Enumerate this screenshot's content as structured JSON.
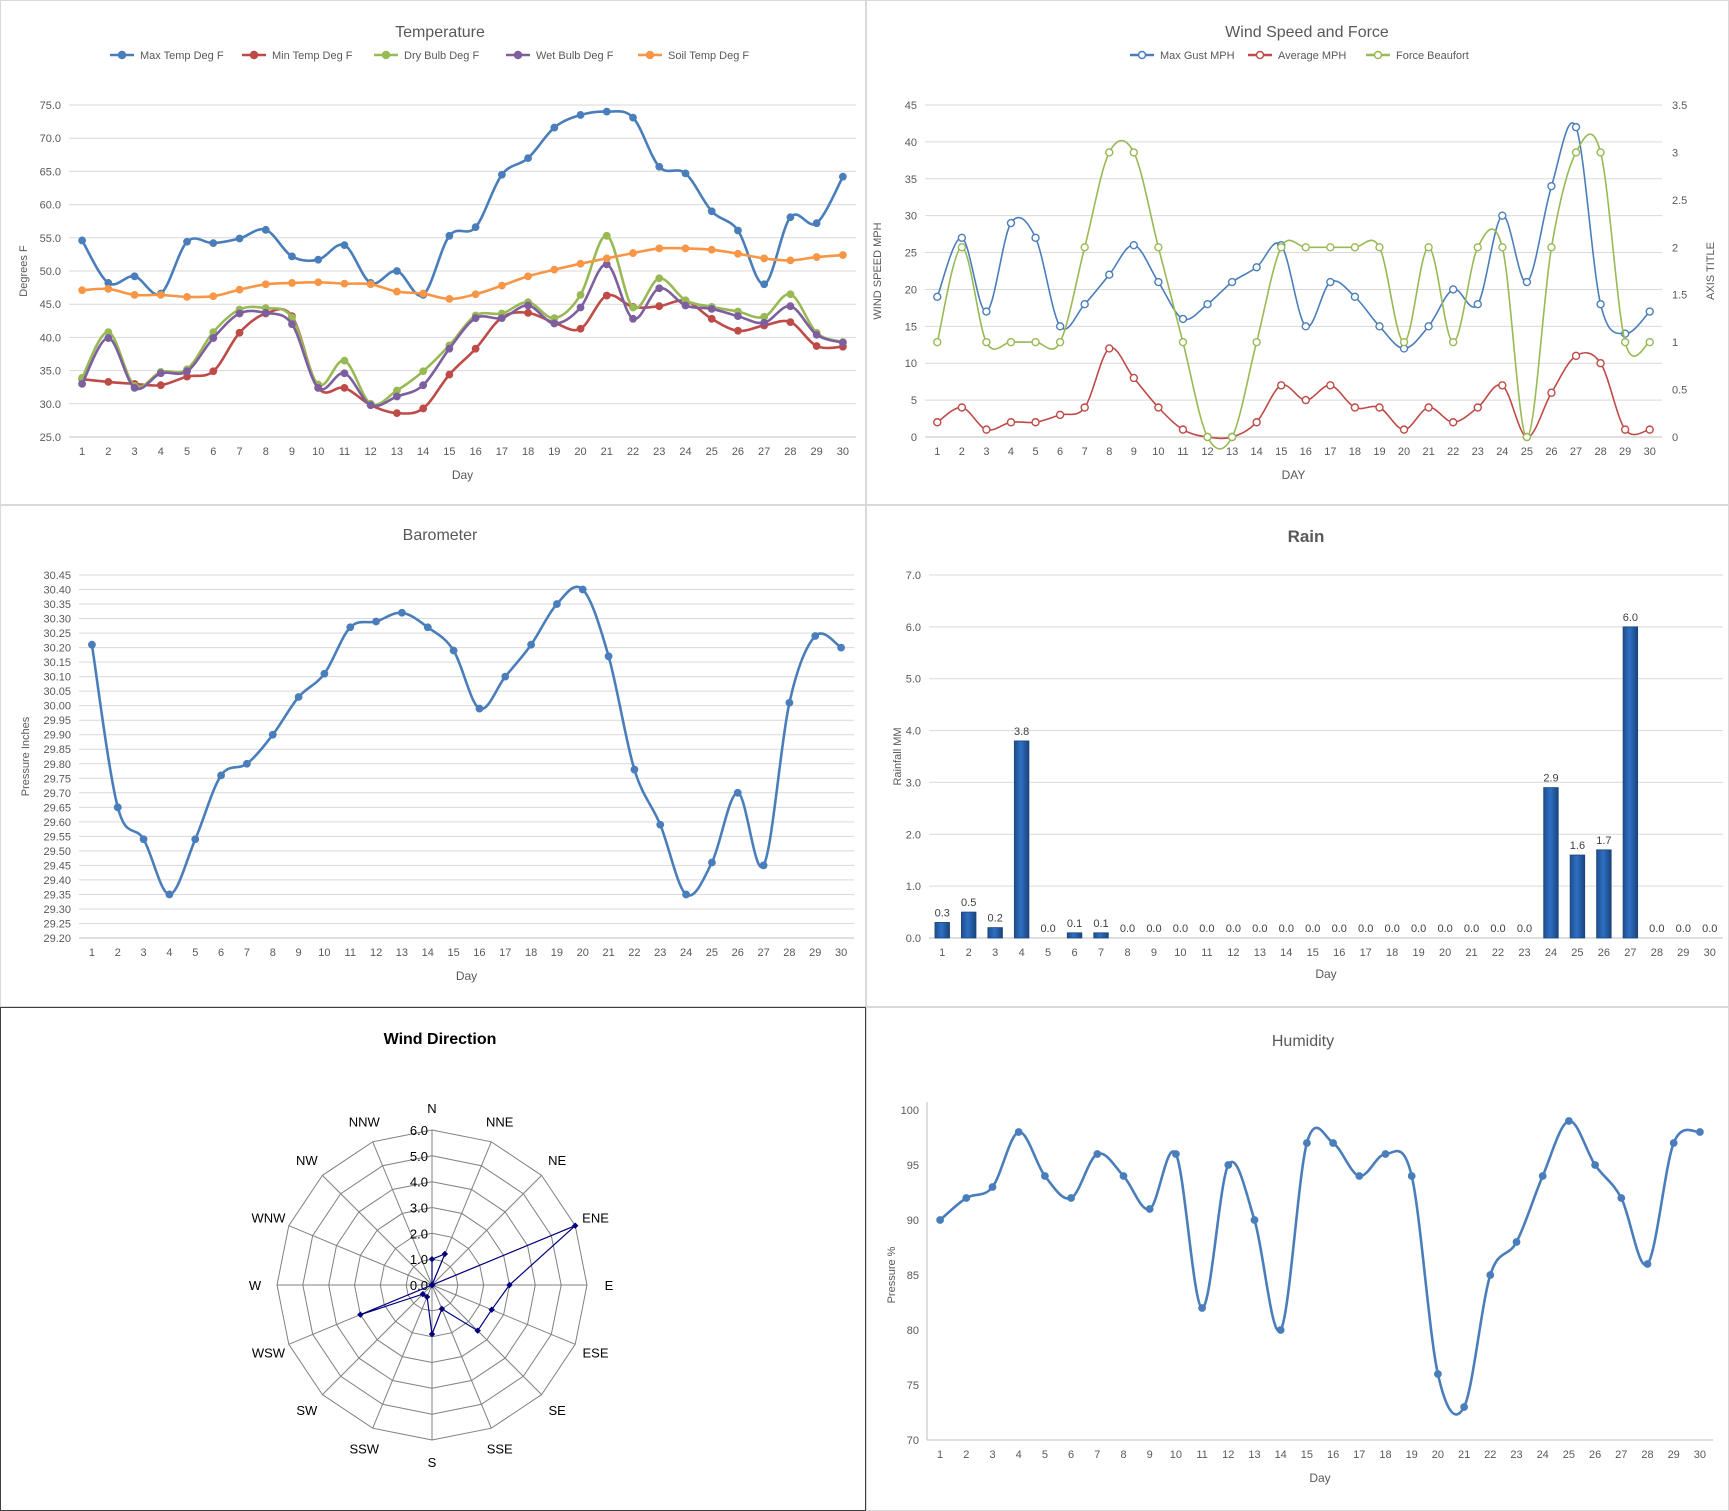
{
  "chart_data": [
    {
      "id": "temperature",
      "type": "line",
      "title": "Temperature",
      "xlabel": "Day",
      "ylabel": "Degrees F",
      "ylim": [
        25,
        75
      ],
      "ystep": 5,
      "ydecimals": 1,
      "legend": "top",
      "grid": true,
      "x": [
        1,
        2,
        3,
        4,
        5,
        6,
        7,
        8,
        9,
        10,
        11,
        12,
        13,
        14,
        15,
        16,
        17,
        18,
        19,
        20,
        21,
        22,
        23,
        24,
        25,
        26,
        27,
        28,
        29,
        30
      ],
      "series": [
        {
          "name": "Max Temp Deg F",
          "color": "#4a7ebb",
          "values": [
            54.6,
            48.2,
            49.2,
            46.6,
            54.4,
            54.2,
            54.9,
            56.2,
            52.2,
            51.7,
            53.9,
            48.2,
            50.0,
            46.4,
            55.3,
            56.6,
            64.5,
            67.0,
            71.6,
            73.5,
            74.0,
            73.1,
            65.7,
            64.7,
            59.0,
            56.1,
            48.0,
            58.1,
            57.2,
            64.2
          ]
        },
        {
          "name": "Min Temp Deg F",
          "color": "#be4b48",
          "values": [
            33.7,
            33.3,
            33.0,
            32.8,
            34.1,
            34.9,
            40.7,
            43.6,
            43.2,
            32.4,
            32.4,
            29.8,
            28.6,
            29.3,
            34.4,
            38.3,
            43.0,
            43.7,
            42.2,
            41.3,
            46.3,
            44.6,
            44.7,
            45.5,
            42.8,
            41.0,
            41.8,
            42.3,
            38.7,
            38.6
          ]
        },
        {
          "name": "Dry Bulb Deg F",
          "color": "#98b954",
          "values": [
            33.9,
            40.8,
            32.7,
            34.8,
            35.2,
            40.8,
            44.2,
            44.4,
            43.0,
            32.9,
            36.5,
            30.0,
            32.0,
            34.9,
            38.8,
            43.3,
            43.6,
            45.3,
            42.9,
            46.4,
            55.3,
            44.5,
            48.9,
            45.6,
            44.6,
            43.9,
            43.1,
            46.5,
            40.7,
            39.3
          ]
        },
        {
          "name": "Wet Bulb Deg F",
          "color": "#7d5fa0",
          "values": [
            33.0,
            39.9,
            32.4,
            34.6,
            34.9,
            39.9,
            43.6,
            43.7,
            42.0,
            32.4,
            34.6,
            29.8,
            31.1,
            32.8,
            38.3,
            42.9,
            42.9,
            44.8,
            42.1,
            44.5,
            51.0,
            42.8,
            47.4,
            44.8,
            44.3,
            43.2,
            42.2,
            44.7,
            40.4,
            39.2
          ]
        },
        {
          "name": "Soil Temp Deg F",
          "color": "#f79646",
          "values": [
            47.1,
            47.3,
            46.4,
            46.4,
            46.1,
            46.2,
            47.2,
            48.0,
            48.2,
            48.3,
            48.1,
            48.0,
            46.9,
            46.6,
            45.8,
            46.5,
            47.8,
            49.2,
            50.2,
            51.1,
            51.9,
            52.7,
            53.4,
            53.4,
            53.2,
            52.6,
            51.9,
            51.6,
            52.1,
            52.4
          ]
        }
      ]
    },
    {
      "id": "wind",
      "type": "line",
      "title": "Wind Speed and Force",
      "xlabel": "DAY",
      "ylabel": "WIND SPEED MPH",
      "y2label": "AXIS TITLE",
      "ylim": [
        0,
        45
      ],
      "ystep": 5,
      "y2lim": [
        0,
        3.5
      ],
      "y2step": 0.5,
      "legend": "top",
      "grid": true,
      "x": [
        1,
        2,
        3,
        4,
        5,
        6,
        7,
        8,
        9,
        10,
        11,
        12,
        13,
        14,
        15,
        16,
        17,
        18,
        19,
        20,
        21,
        22,
        23,
        24,
        25,
        26,
        27,
        28,
        29,
        30
      ],
      "series": [
        {
          "name": "Max Gust MPH",
          "color": "#4a7ebb",
          "axis": "left",
          "values": [
            19,
            27,
            17,
            29,
            27,
            15,
            18,
            22,
            26,
            21,
            16,
            18,
            21,
            23,
            26,
            15,
            21,
            19,
            15,
            12,
            15,
            20,
            18,
            30,
            21,
            34,
            42,
            18,
            14,
            17
          ]
        },
        {
          "name": "Average MPH",
          "color": "#be4b48",
          "axis": "left",
          "values": [
            2,
            4,
            1,
            2,
            2,
            3,
            4,
            12,
            8,
            4,
            1,
            0,
            0,
            2,
            7,
            5,
            7,
            4,
            4,
            1,
            4,
            2,
            4,
            7,
            0,
            6,
            11,
            10,
            1,
            1
          ]
        },
        {
          "name": "Force Beaufort",
          "color": "#98b954",
          "axis": "right",
          "values": [
            1,
            2,
            1,
            1,
            1,
            1,
            2,
            3,
            3,
            2,
            1,
            0,
            0,
            1,
            2,
            2,
            2,
            2,
            2,
            1,
            2,
            1,
            2,
            2,
            0,
            2,
            3,
            3,
            1,
            1
          ]
        }
      ]
    },
    {
      "id": "barometer",
      "type": "line",
      "title": "Barometer",
      "xlabel": "Day",
      "ylabel": "Pressure Inches",
      "ylim": [
        29.2,
        30.45
      ],
      "ystep": 0.05,
      "ydecimals": 2,
      "grid": true,
      "x": [
        1,
        2,
        3,
        4,
        5,
        6,
        7,
        8,
        9,
        10,
        11,
        12,
        13,
        14,
        15,
        16,
        17,
        18,
        19,
        20,
        21,
        22,
        23,
        24,
        25,
        26,
        27,
        28,
        29,
        30
      ],
      "series": [
        {
          "name": "",
          "color": "#4a7ebb",
          "values": [
            30.21,
            29.65,
            29.54,
            29.35,
            29.54,
            29.76,
            29.8,
            29.9,
            30.03,
            30.11,
            30.27,
            30.29,
            30.32,
            30.27,
            30.19,
            29.99,
            30.1,
            30.21,
            30.35,
            30.4,
            30.17,
            29.78,
            29.59,
            29.35,
            29.46,
            29.7,
            29.45,
            30.01,
            30.24,
            30.2
          ]
        }
      ]
    },
    {
      "id": "rain",
      "type": "bar",
      "title": "Rain",
      "xlabel": "Day",
      "ylabel": "Rainfall MM",
      "ylim": [
        0,
        7
      ],
      "ystep": 1,
      "ydecimals": 1,
      "grid": true,
      "color": "#2f6fc4",
      "categories": [
        "1",
        "2",
        "3",
        "4",
        "5",
        "6",
        "7",
        "8",
        "9",
        "10",
        "11",
        "12",
        "13",
        "14",
        "15",
        "16",
        "17",
        "18",
        "19",
        "20",
        "21",
        "22",
        "23",
        "24",
        "25",
        "26",
        "27",
        "28",
        "29",
        "30"
      ],
      "values": [
        0.3,
        0.5,
        0.2,
        3.8,
        0.0,
        0.1,
        0.1,
        0.0,
        0.0,
        0.0,
        0.0,
        0.0,
        0.0,
        0.0,
        0.0,
        0.0,
        0.0,
        0.0,
        0.0,
        0.0,
        0.0,
        0.0,
        0.0,
        2.9,
        1.6,
        1.7,
        6.0,
        0.0,
        0.0,
        0.0
      ]
    },
    {
      "id": "wind_direction",
      "type": "radar",
      "title": "Wind Direction",
      "rlim": [
        0,
        6
      ],
      "rstep": 1,
      "ydecimals": 1,
      "color": "#000080",
      "categories": [
        "N",
        "NNE",
        "NE",
        "ENE",
        "E",
        "ESE",
        "SE",
        "SSE",
        "S",
        "SSW",
        "SW",
        "WSW",
        "W",
        "WNW",
        "NW",
        "NNW"
      ],
      "values": [
        1.0,
        1.3,
        0.0,
        6.0,
        3.0,
        2.5,
        2.5,
        1.0,
        1.9,
        0.5,
        0.5,
        3.0,
        0.0,
        0.0,
        0.0,
        0.0
      ]
    },
    {
      "id": "humidity",
      "type": "line",
      "title": "Humidity",
      "xlabel": "Day",
      "ylabel": "Pressure %",
      "ylim": [
        70,
        100
      ],
      "ystep": 5,
      "ydecimals": 0,
      "grid": false,
      "x": [
        1,
        2,
        3,
        4,
        5,
        6,
        7,
        8,
        9,
        10,
        11,
        12,
        13,
        14,
        15,
        16,
        17,
        18,
        19,
        20,
        21,
        22,
        23,
        24,
        25,
        26,
        27,
        28,
        29,
        30
      ],
      "series": [
        {
          "name": "",
          "color": "#4a7ebb",
          "values": [
            90,
            92,
            93,
            98,
            94,
            92,
            96,
            94,
            91,
            96,
            82,
            95,
            90,
            80,
            97,
            97,
            94,
            96,
            94,
            76,
            73,
            85,
            88,
            94,
            99,
            95,
            92,
            86,
            97,
            98
          ]
        }
      ]
    }
  ]
}
